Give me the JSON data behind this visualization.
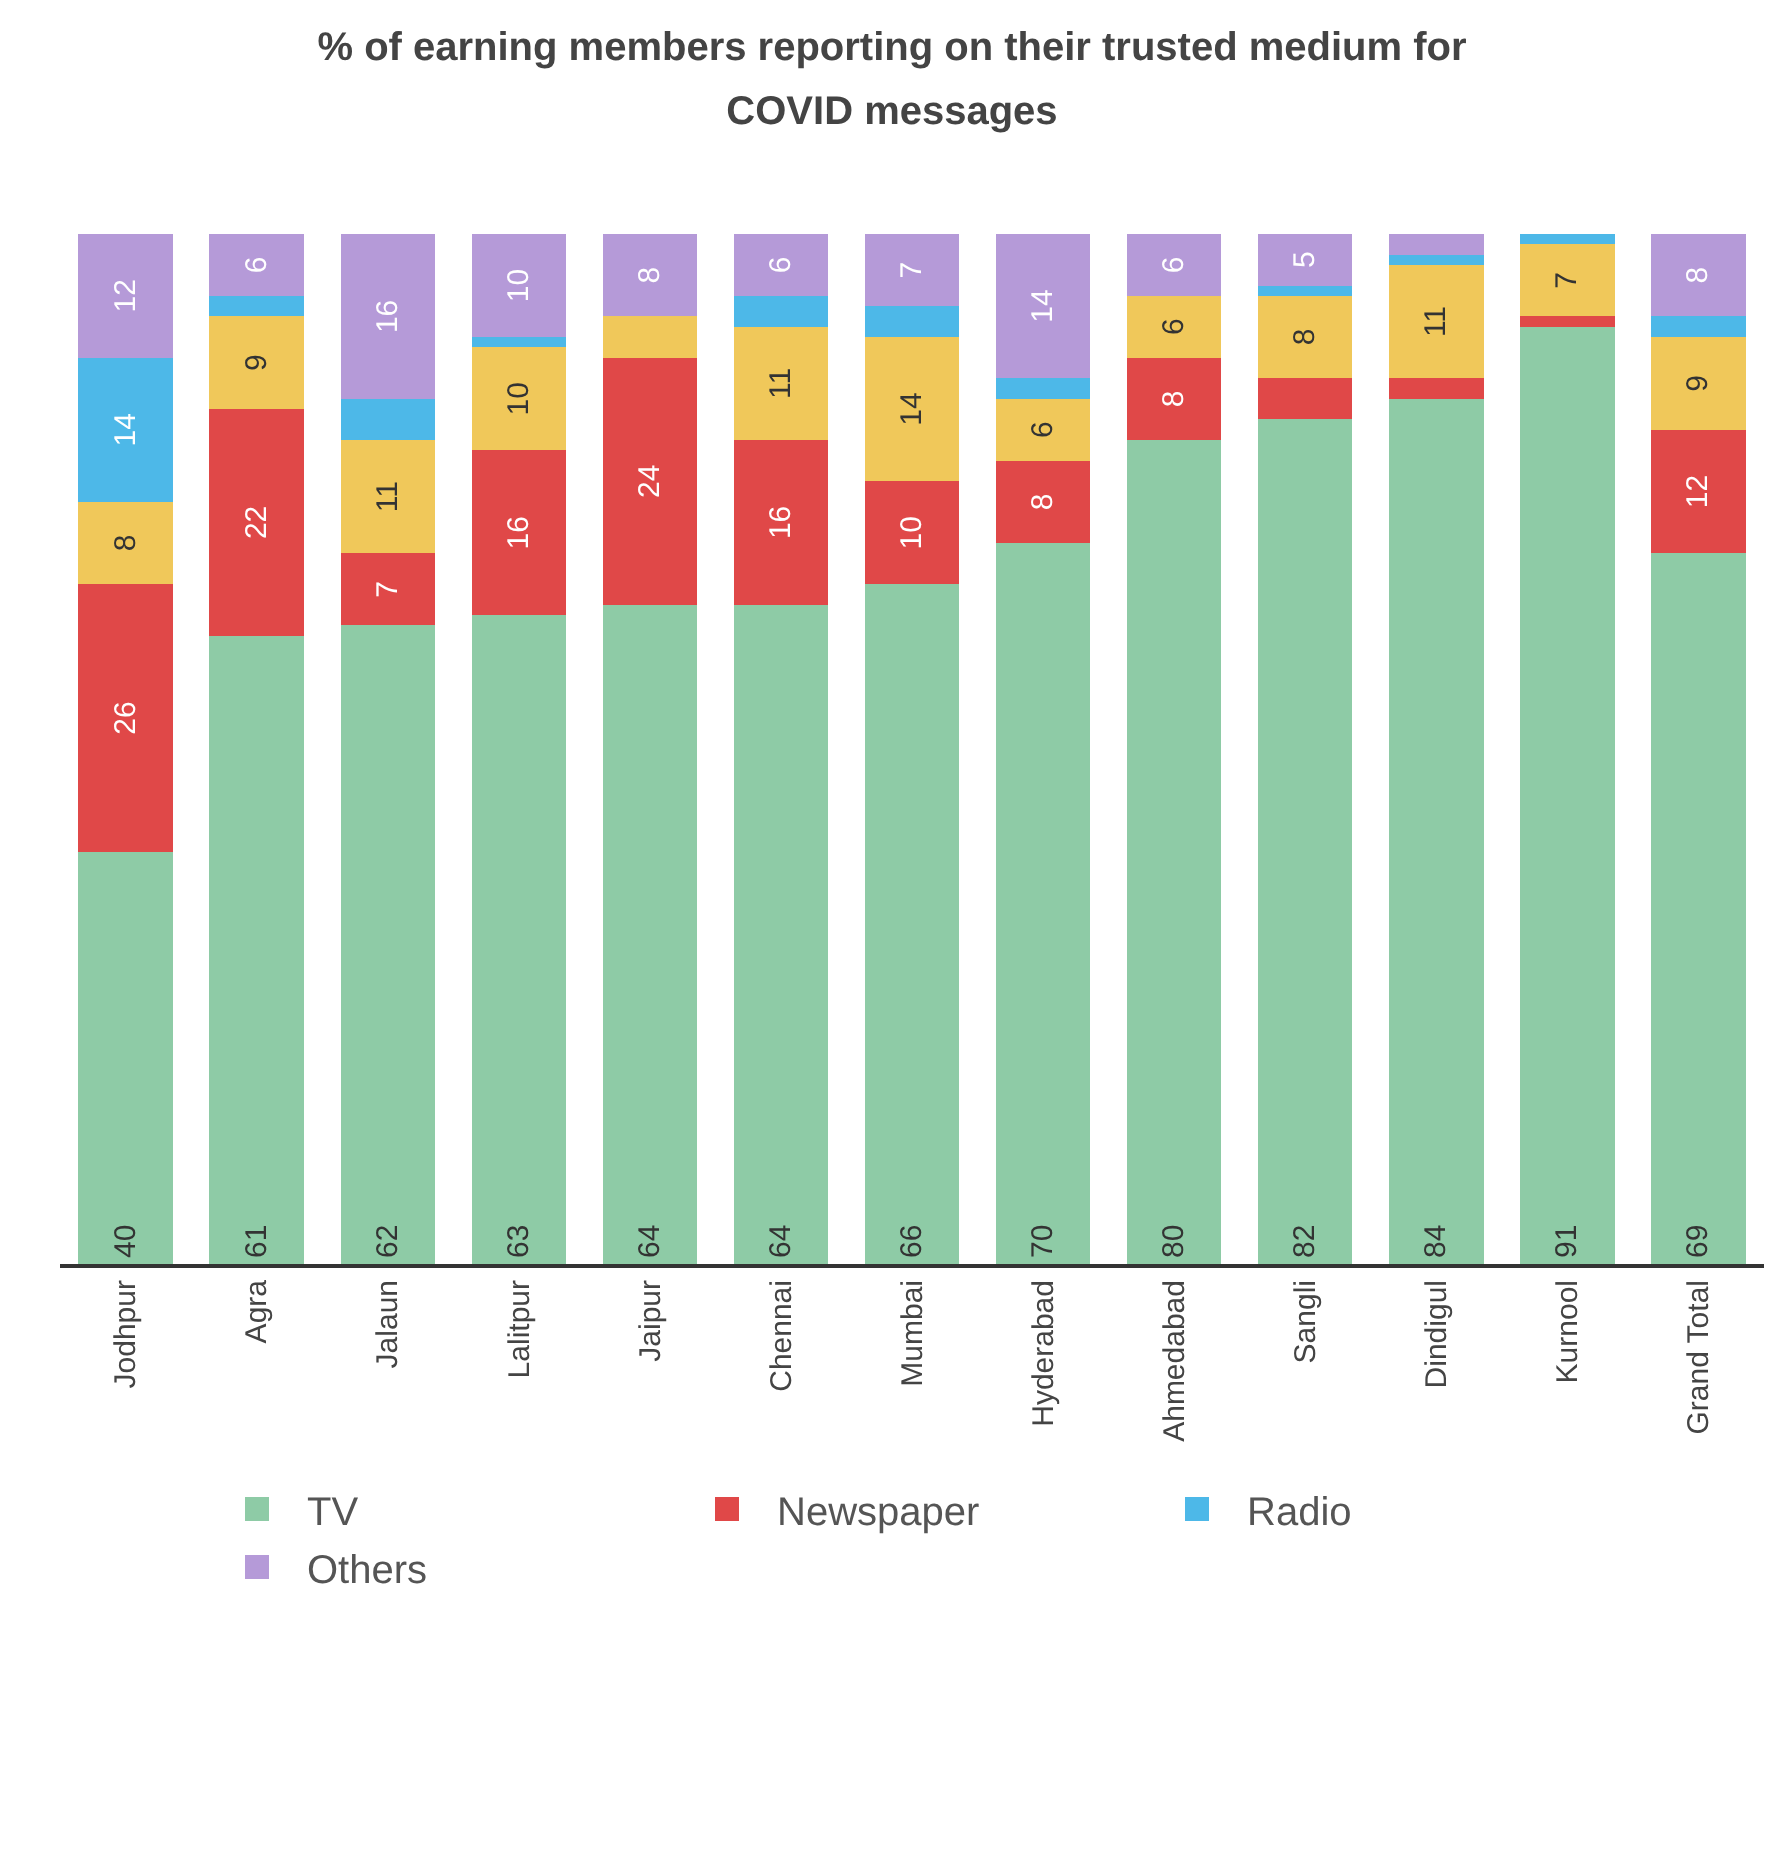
{
  "chart_data": {
    "type": "bar",
    "title": "% of earning members reporting on their trusted medium for COVID messages",
    "categories": [
      "Jodhpur",
      "Agra",
      "Jalaun",
      "Lalitpur",
      "Jaipur",
      "Chennai",
      "Mumbai",
      "Hyderabad",
      "Ahmedabad",
      "Sangli",
      "Dindigul",
      "Kurnool",
      "Grand Total"
    ],
    "stacked": true,
    "ylim": [
      0,
      100
    ],
    "legend": "bottom",
    "series": [
      {
        "name": "TV",
        "color": "#8ecba6",
        "values": [
          40,
          61,
          62,
          63,
          64,
          64,
          66,
          70,
          80,
          82,
          84,
          91,
          69
        ],
        "value_labels": [
          "40",
          "61",
          "62",
          "63",
          "64",
          "64",
          "66",
          "70",
          "80",
          "82",
          "84",
          "91",
          "69"
        ]
      },
      {
        "name": "Newspaper",
        "color": "#e04848",
        "values": [
          26,
          22,
          7,
          16,
          24,
          16,
          10,
          8,
          8,
          4,
          2,
          1,
          12
        ],
        "value_labels": [
          "26",
          "22",
          "7",
          "16",
          "24",
          "16",
          "10",
          "8",
          "8",
          null,
          null,
          null,
          "12"
        ]
      },
      {
        "color": "#f0c85a",
        "values": [
          8,
          9,
          11,
          10,
          4,
          11,
          14,
          6,
          6,
          8,
          11,
          7,
          9
        ],
        "value_labels": [
          "8",
          "9",
          "11",
          "10",
          null,
          "11",
          "14",
          "6",
          "6",
          "8",
          "11",
          "7",
          "9"
        ]
      },
      {
        "name": "Radio",
        "color": "#4db8e8",
        "values": [
          14,
          2,
          4,
          1,
          0,
          3,
          3,
          2,
          0,
          1,
          1,
          1,
          2
        ],
        "value_labels": [
          "14",
          null,
          null,
          null,
          null,
          null,
          null,
          null,
          null,
          null,
          null,
          null,
          null
        ]
      },
      {
        "name": "Others",
        "color": "#b59ad8",
        "values": [
          12,
          6,
          16,
          10,
          8,
          6,
          7,
          14,
          6,
          5,
          2,
          0,
          8
        ],
        "value_labels": [
          "12",
          "6",
          "16",
          "10",
          "8",
          "6",
          "7",
          "14",
          "6",
          "5",
          null,
          null,
          "8"
        ]
      }
    ]
  }
}
